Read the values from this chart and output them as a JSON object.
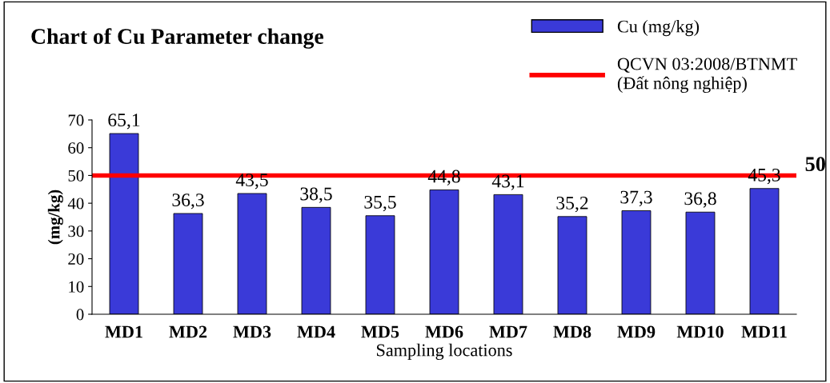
{
  "chart_data": {
    "type": "bar",
    "title": "Chart of Cu Parameter change",
    "xlabel": "Sampling locations",
    "ylabel": "(mg/kg)",
    "categories": [
      "MD1",
      "MD2",
      "MD3",
      "MD4",
      "MD5",
      "MD6",
      "MD7",
      "MD8",
      "MD9",
      "MD10",
      "MD11"
    ],
    "series": [
      {
        "name": "Cu (mg/kg)",
        "color": "#3a3ad8",
        "values": [
          65.1,
          36.3,
          43.5,
          38.5,
          35.5,
          44.8,
          43.1,
          35.2,
          37.3,
          36.8,
          45.3
        ],
        "value_labels": [
          "65,1",
          "36,3",
          "43,5",
          "38,5",
          "35,5",
          "44,8",
          "43,1",
          "35,2",
          "37,3",
          "36,8",
          "45,3"
        ]
      }
    ],
    "ref_lines": [
      {
        "axis": "y",
        "value": 50,
        "label": "50",
        "color": "#ff0000",
        "line_style": "solid"
      }
    ],
    "annotations": [
      "QCVN 03:2008/BTNMT\n(Đất nông nghiệp)"
    ],
    "ylim": [
      0,
      70
    ],
    "yticks": [
      0,
      10,
      20,
      30,
      40,
      50,
      60,
      70
    ],
    "grid": false,
    "legend": "top right"
  }
}
